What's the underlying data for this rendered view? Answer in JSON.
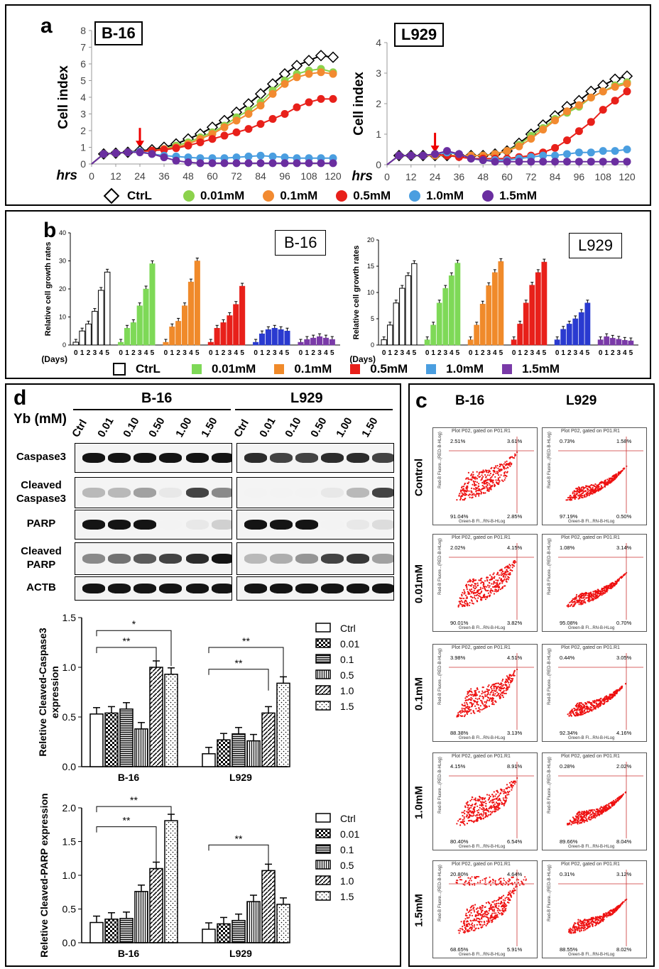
{
  "panel_a": {
    "label": "a",
    "left": {
      "title": "B-16"
    },
    "right": {
      "title": "L929"
    },
    "ylabel": "Cell index",
    "xlabel": "hrs",
    "legend": [
      {
        "name": "CtrL",
        "color": "#000000",
        "marker": "diamond"
      },
      {
        "name": "0.01mM",
        "color": "#8cd24c",
        "marker": "dot"
      },
      {
        "name": "0.1mM",
        "color": "#f28a30",
        "marker": "dot"
      },
      {
        "name": "0.5mM",
        "color": "#e8201a",
        "marker": "dot"
      },
      {
        "name": "1.0mM",
        "color": "#4a9ee0",
        "marker": "dot"
      },
      {
        "name": "1.5mM",
        "color": "#6a2ea0",
        "marker": "dot"
      }
    ]
  },
  "panel_b": {
    "label": "b",
    "left": {
      "title": "B-16"
    },
    "right": {
      "title": "L929"
    },
    "ylabel": "Relative cell growth rates",
    "xlabel": "(Days)",
    "legend": [
      {
        "name": "CtrL",
        "color": "#ffffff"
      },
      {
        "name": "0.01mM",
        "color": "#7ed957"
      },
      {
        "name": "0.1mM",
        "color": "#f08a2a"
      },
      {
        "name": "0.5mM",
        "color": "#e8201a"
      },
      {
        "name": "1.0mM",
        "color": "#4a9ee0"
      },
      {
        "name": "1.5mM",
        "color": "#7a3aa8"
      }
    ]
  },
  "panel_d": {
    "label": "d",
    "cell_b16": "B-16",
    "cell_l929": "L929",
    "yb_label": "Yb (mM)",
    "lanes": [
      "Ctrl",
      "0.01",
      "0.10",
      "0.50",
      "1.00",
      "1.50"
    ],
    "proteins": [
      {
        "name": "Caspase3"
      },
      {
        "name": "Cleaved Caspase3"
      },
      {
        "name": "PARP"
      },
      {
        "name": "Cleaved PARP"
      },
      {
        "name": "ACTB"
      }
    ]
  },
  "panel_c": {
    "label": "c",
    "col_b16": "B-16",
    "col_l929": "L929",
    "plot_title": "Plot P02, gated on P01.R1",
    "x_axis": "Green-B Fl...RN-B-HLog",
    "y_axis": "Red-B Fluore...(RED-B-HLog)",
    "rows": [
      {
        "label": "Control",
        "b16": [
          "2.51%",
          "3.61%",
          "91.04%",
          "2.85%"
        ],
        "l929": [
          "0.73%",
          "1.58%",
          "97.19%",
          "0.50%"
        ]
      },
      {
        "label": "0.01mM",
        "b16": [
          "2.02%",
          "4.15%",
          "90.01%",
          "3.82%"
        ],
        "l929": [
          "1.08%",
          "3.14%",
          "95.08%",
          "0.70%"
        ]
      },
      {
        "label": "0.1mM",
        "b16": [
          "3.98%",
          "4.51%",
          "88.38%",
          "3.13%"
        ],
        "l929": [
          "0.44%",
          "3.05%",
          "92.34%",
          "4.16%"
        ]
      },
      {
        "label": "1.0mM",
        "b16": [
          "4.15%",
          "8.91%",
          "80.40%",
          "6.54%"
        ],
        "l929": [
          "0.28%",
          "2.02%",
          "89.66%",
          "8.04%"
        ]
      },
      {
        "label": "1.5mM",
        "b16": [
          "20.80%",
          "4.64%",
          "68.65%",
          "5.91%"
        ],
        "l929": [
          "0.31%",
          "3.12%",
          "88.55%",
          "8.02%"
        ]
      }
    ]
  },
  "chart_data": [
    {
      "id": "a-left",
      "type": "line",
      "title": "B-16",
      "xlabel": "hrs",
      "ylabel": "Cell index",
      "xlim": [
        0,
        120
      ],
      "ylim": [
        0,
        8
      ],
      "xticks": [
        0,
        12,
        24,
        36,
        48,
        60,
        72,
        84,
        96,
        108,
        120
      ],
      "yticks": [
        0,
        1,
        2,
        3,
        4,
        5,
        6,
        7,
        8
      ],
      "x": [
        0,
        6,
        12,
        18,
        24,
        30,
        36,
        42,
        48,
        54,
        60,
        66,
        72,
        78,
        84,
        90,
        96,
        102,
        108,
        114,
        120
      ],
      "series": [
        {
          "name": "CtrL",
          "values": [
            0,
            0.6,
            0.65,
            0.7,
            0.8,
            0.85,
            1.0,
            1.2,
            1.5,
            1.8,
            2.2,
            2.6,
            3.1,
            3.6,
            4.2,
            4.8,
            5.4,
            5.9,
            6.2,
            6.5,
            6.4
          ]
        },
        {
          "name": "0.01mM",
          "values": [
            0,
            0.6,
            0.65,
            0.7,
            0.75,
            0.8,
            0.9,
            1.1,
            1.3,
            1.6,
            1.9,
            2.3,
            2.8,
            3.2,
            3.7,
            4.4,
            5.0,
            5.4,
            5.6,
            5.7,
            5.5
          ]
        },
        {
          "name": "0.1mM",
          "values": [
            0,
            0.6,
            0.65,
            0.7,
            0.75,
            0.8,
            0.9,
            1.0,
            1.2,
            1.5,
            1.8,
            2.2,
            2.6,
            3.0,
            3.5,
            4.2,
            4.8,
            5.2,
            5.4,
            5.5,
            5.4
          ]
        },
        {
          "name": "0.5mM",
          "values": [
            0,
            0.6,
            0.65,
            0.7,
            0.75,
            0.8,
            0.85,
            0.95,
            1.1,
            1.3,
            1.5,
            1.7,
            1.9,
            2.1,
            2.4,
            2.7,
            3.0,
            3.4,
            3.7,
            3.9,
            3.9
          ]
        },
        {
          "name": "1.0mM",
          "values": [
            0,
            0.6,
            0.65,
            0.7,
            0.75,
            0.6,
            0.5,
            0.45,
            0.4,
            0.35,
            0.35,
            0.35,
            0.4,
            0.45,
            0.5,
            0.45,
            0.4,
            0.35,
            0.35,
            0.35,
            0.35
          ]
        },
        {
          "name": "1.5mM",
          "values": [
            0,
            0.6,
            0.65,
            0.7,
            0.7,
            0.6,
            0.4,
            0.2,
            0.1,
            0.05,
            0.05,
            0.05,
            0.05,
            0.05,
            0.05,
            0.05,
            0.05,
            0.05,
            0.05,
            0.05,
            0.05
          ]
        }
      ]
    },
    {
      "id": "a-right",
      "type": "line",
      "title": "L929",
      "xlabel": "hrs",
      "ylabel": "Cell index",
      "xlim": [
        0,
        120
      ],
      "ylim": [
        0,
        4
      ],
      "xticks": [
        0,
        12,
        24,
        36,
        48,
        60,
        72,
        84,
        96,
        108,
        120
      ],
      "yticks": [
        0,
        1,
        2,
        3,
        4
      ],
      "x": [
        0,
        6,
        12,
        18,
        24,
        30,
        36,
        42,
        48,
        54,
        60,
        66,
        72,
        78,
        84,
        90,
        96,
        102,
        108,
        114,
        120
      ],
      "series": [
        {
          "name": "CtrL",
          "values": [
            0,
            0.3,
            0.3,
            0.3,
            0.3,
            0.3,
            0.3,
            0.3,
            0.3,
            0.35,
            0.45,
            0.7,
            1.0,
            1.3,
            1.6,
            1.9,
            2.1,
            2.4,
            2.6,
            2.8,
            2.9
          ]
        },
        {
          "name": "0.01mM",
          "values": [
            0,
            0.3,
            0.3,
            0.3,
            0.3,
            0.3,
            0.3,
            0.3,
            0.3,
            0.35,
            0.45,
            0.65,
            0.95,
            1.2,
            1.5,
            1.7,
            1.9,
            2.2,
            2.4,
            2.6,
            2.7
          ]
        },
        {
          "name": "0.1mM",
          "values": [
            0,
            0.3,
            0.3,
            0.3,
            0.3,
            0.3,
            0.3,
            0.3,
            0.3,
            0.35,
            0.45,
            0.6,
            0.85,
            1.15,
            1.45,
            1.75,
            1.95,
            2.2,
            2.4,
            2.55,
            2.65
          ]
        },
        {
          "name": "0.5mM",
          "values": [
            0,
            0.3,
            0.3,
            0.3,
            0.35,
            0.3,
            0.25,
            0.2,
            0.2,
            0.2,
            0.2,
            0.25,
            0.3,
            0.4,
            0.55,
            0.8,
            1.1,
            1.4,
            1.8,
            2.1,
            2.4
          ]
        },
        {
          "name": "1.0mM",
          "values": [
            0,
            0.3,
            0.3,
            0.3,
            0.35,
            0.4,
            0.35,
            0.2,
            0.15,
            0.15,
            0.15,
            0.2,
            0.25,
            0.3,
            0.3,
            0.35,
            0.4,
            0.4,
            0.45,
            0.45,
            0.5
          ]
        },
        {
          "name": "1.5mM",
          "values": [
            0,
            0.3,
            0.3,
            0.3,
            0.35,
            0.45,
            0.35,
            0.2,
            0.15,
            0.1,
            0.1,
            0.1,
            0.1,
            0.1,
            0.1,
            0.1,
            0.1,
            0.1,
            0.1,
            0.1,
            0.1
          ]
        }
      ]
    },
    {
      "id": "b-left",
      "type": "bar",
      "title": "B-16",
      "ylabel": "Relative cell growth rates",
      "xlabel": "(Days)",
      "ylim": [
        0,
        40
      ],
      "yticks": [
        0,
        10,
        20,
        30,
        40
      ],
      "categories": [
        "0",
        "1",
        "2",
        "3",
        "4",
        "5"
      ],
      "series": [
        {
          "name": "CtrL",
          "values": [
            1,
            5,
            7.5,
            12,
            19.5,
            26
          ]
        },
        {
          "name": "0.01mM",
          "values": [
            1,
            6,
            8,
            14,
            20,
            29
          ]
        },
        {
          "name": "0.1mM",
          "values": [
            1,
            6.5,
            8.5,
            14,
            22.5,
            30
          ]
        },
        {
          "name": "0.5mM",
          "values": [
            1,
            6,
            8,
            10.5,
            14.5,
            21
          ]
        },
        {
          "name": "1.0mM",
          "values": [
            1,
            4,
            5.5,
            6,
            5.5,
            5
          ]
        },
        {
          "name": "1.5mM",
          "values": [
            1,
            2,
            2.5,
            3,
            2.5,
            2
          ]
        }
      ]
    },
    {
      "id": "b-right",
      "type": "bar",
      "title": "L929",
      "ylabel": "Relative cell growth rates",
      "xlabel": "(Days)",
      "ylim": [
        0,
        20
      ],
      "yticks": [
        0,
        5,
        10,
        15,
        20
      ],
      "categories": [
        "0",
        "1",
        "2",
        "3",
        "4",
        "5"
      ],
      "series": [
        {
          "name": "CtrL",
          "values": [
            1,
            3.8,
            8,
            10.8,
            13.2,
            15.5
          ]
        },
        {
          "name": "0.01mM",
          "values": [
            1,
            3.8,
            8,
            10.8,
            13.2,
            15.6
          ]
        },
        {
          "name": "0.1mM",
          "values": [
            1,
            3.8,
            7.8,
            11.3,
            13.8,
            15.9
          ]
        },
        {
          "name": "0.5mM",
          "values": [
            1,
            4,
            8,
            11.4,
            13.8,
            15.8
          ]
        },
        {
          "name": "1.0mM",
          "values": [
            1,
            3,
            4,
            5,
            6.2,
            8
          ]
        },
        {
          "name": "1.5mM",
          "values": [
            1,
            1.6,
            1.3,
            1.1,
            0.9,
            0.8
          ]
        }
      ]
    },
    {
      "id": "d-caspase3",
      "type": "bar",
      "ylabel": "Reletive Cleaved-Caspase3 expression",
      "categories": [
        "B-16",
        "L929"
      ],
      "ylim": [
        0,
        1.5
      ],
      "yticks": [
        0.0,
        0.5,
        1.0,
        1.5
      ],
      "legend": [
        "Ctrl",
        "0.01",
        "0.1",
        "0.5",
        "1.0",
        "1.5"
      ],
      "series": [
        {
          "name": "Ctrl",
          "values": [
            0.53,
            0.13
          ]
        },
        {
          "name": "0.01",
          "values": [
            0.54,
            0.27
          ]
        },
        {
          "name": "0.1",
          "values": [
            0.58,
            0.33
          ]
        },
        {
          "name": "0.5",
          "values": [
            0.38,
            0.26
          ]
        },
        {
          "name": "1.0",
          "values": [
            1.0,
            0.54
          ]
        },
        {
          "name": "1.5",
          "values": [
            0.93,
            0.84
          ]
        }
      ],
      "annotations": [
        "*",
        "**",
        "**",
        "**"
      ]
    },
    {
      "id": "d-parp",
      "type": "bar",
      "ylabel": "Reletive Cleaved-PARP expression",
      "categories": [
        "B-16",
        "L929"
      ],
      "ylim": [
        0,
        2.0
      ],
      "yticks": [
        0.0,
        0.5,
        1.0,
        1.5,
        2.0
      ],
      "legend": [
        "Ctrl",
        "0.01",
        "0.1",
        "0.5",
        "1.0",
        "1.5"
      ],
      "series": [
        {
          "name": "Ctrl",
          "values": [
            0.3,
            0.2
          ]
        },
        {
          "name": "0.01",
          "values": [
            0.35,
            0.28
          ]
        },
        {
          "name": "0.1",
          "values": [
            0.36,
            0.33
          ]
        },
        {
          "name": "0.5",
          "values": [
            0.76,
            0.61
          ]
        },
        {
          "name": "1.0",
          "values": [
            1.1,
            1.07
          ]
        },
        {
          "name": "1.5",
          "values": [
            1.81,
            0.57
          ]
        }
      ],
      "annotations": [
        "**",
        "**",
        "**"
      ]
    }
  ]
}
